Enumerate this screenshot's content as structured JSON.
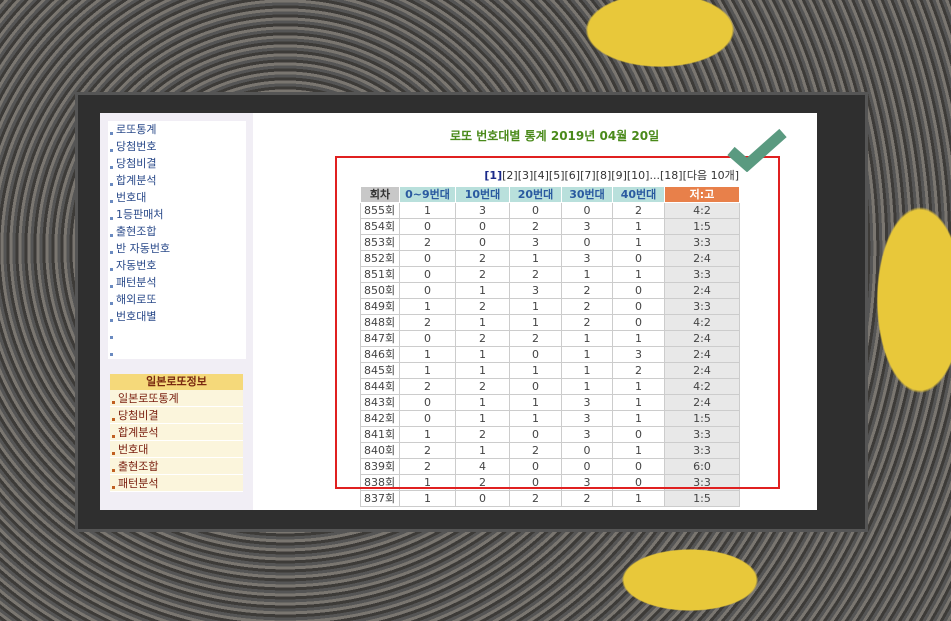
{
  "sidebar": {
    "items": [
      "로또통계",
      "당첨번호",
      "당첨비결",
      "합계분석",
      "번호대",
      "1등판매처",
      "출현조합",
      "반 자동번호",
      "자동번호",
      "패턴분석",
      "해외로또",
      "번호대별",
      "",
      ""
    ],
    "japan_header": "일본로또정보",
    "japan_items": [
      "일본로또통계",
      "당첨비결",
      "합계분석",
      "번호대",
      "출현조합",
      "패턴분석"
    ]
  },
  "main": {
    "title": "로또 번호대별 통계 2019년 04월 20일",
    "pager": [
      "[1]",
      "[2]",
      "[3]",
      "[4]",
      "[5]",
      "[6]",
      "[7]",
      "[8]",
      "[9]",
      "[10]",
      "...",
      "[18]",
      "[다음 10개]"
    ],
    "columns": [
      "회차",
      "0~9번대",
      "10번대",
      "20번대",
      "30번대",
      "40번대",
      "저:고"
    ],
    "rows": [
      [
        "855회",
        "1",
        "3",
        "0",
        "0",
        "2",
        "4:2"
      ],
      [
        "854회",
        "0",
        "0",
        "2",
        "3",
        "1",
        "1:5"
      ],
      [
        "853회",
        "2",
        "0",
        "3",
        "0",
        "1",
        "3:3"
      ],
      [
        "852회",
        "0",
        "2",
        "1",
        "3",
        "0",
        "2:4"
      ],
      [
        "851회",
        "0",
        "2",
        "2",
        "1",
        "1",
        "3:3"
      ],
      [
        "850회",
        "0",
        "1",
        "3",
        "2",
        "0",
        "2:4"
      ],
      [
        "849회",
        "1",
        "2",
        "1",
        "2",
        "0",
        "3:3"
      ],
      [
        "848회",
        "2",
        "1",
        "1",
        "2",
        "0",
        "4:2"
      ],
      [
        "847회",
        "0",
        "2",
        "2",
        "1",
        "1",
        "2:4"
      ],
      [
        "846회",
        "1",
        "1",
        "0",
        "1",
        "3",
        "2:4"
      ],
      [
        "845회",
        "1",
        "1",
        "1",
        "1",
        "2",
        "2:4"
      ],
      [
        "844회",
        "2",
        "2",
        "0",
        "1",
        "1",
        "4:2"
      ],
      [
        "843회",
        "0",
        "1",
        "1",
        "3",
        "1",
        "2:4"
      ],
      [
        "842회",
        "0",
        "1",
        "1",
        "3",
        "1",
        "1:5"
      ],
      [
        "841회",
        "1",
        "2",
        "0",
        "3",
        "0",
        "3:3"
      ],
      [
        "840회",
        "2",
        "1",
        "2",
        "0",
        "1",
        "3:3"
      ],
      [
        "839회",
        "2",
        "4",
        "0",
        "0",
        "0",
        "6:0"
      ],
      [
        "838회",
        "1",
        "2",
        "0",
        "3",
        "0",
        "3:3"
      ],
      [
        "837회",
        "1",
        "0",
        "2",
        "2",
        "1",
        "1:5"
      ]
    ]
  },
  "colors": {
    "highlight_box": "#e02020",
    "checkmark": "#5a9a80",
    "header_accent": "#e8804a"
  }
}
